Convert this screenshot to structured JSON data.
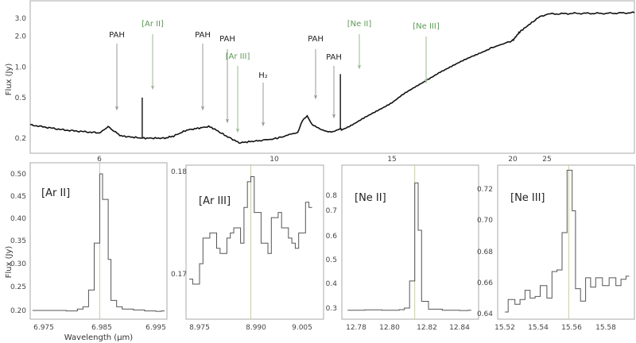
{
  "chart_data": [
    {
      "id": "overview",
      "type": "line",
      "title": "",
      "xlabel": "",
      "ylabel": "Flux (Jy)",
      "yscale": "log",
      "ytick_labels": [
        "3.0",
        "2.0",
        "1.0",
        "0.5",
        "0.2"
      ],
      "xtick_labels": [
        "6",
        "10",
        "15",
        "20",
        "25"
      ],
      "xlim": [
        5,
        28
      ],
      "ylim": [
        0.15,
        4.0
      ],
      "x": [
        5.0,
        5.5,
        6.0,
        6.1,
        6.2,
        6.3,
        6.5,
        6.98,
        7.5,
        7.7,
        8.0,
        8.5,
        8.6,
        8.9,
        9.2,
        9.7,
        10.5,
        11.0,
        11.2,
        11.4,
        11.6,
        12.0,
        12.5,
        12.81,
        12.85,
        14.0,
        15.0,
        15.55,
        17.0,
        19.0,
        21.0,
        23.0,
        24.0,
        25.0,
        26.0,
        27.0,
        28.0
      ],
      "values": [
        0.27,
        0.24,
        0.225,
        0.24,
        0.26,
        0.24,
        0.21,
        0.2,
        0.2,
        0.21,
        0.24,
        0.26,
        0.25,
        0.21,
        0.18,
        0.19,
        0.21,
        0.23,
        0.3,
        0.33,
        0.27,
        0.24,
        0.23,
        0.25,
        0.24,
        0.33,
        0.45,
        0.55,
        0.9,
        1.5,
        2.2,
        2.8,
        3.1,
        3.3,
        3.35,
        3.35,
        3.4
      ],
      "annotations": [
        {
          "text": "PAH",
          "x": 6.2,
          "color": "#222222"
        },
        {
          "text": "[Ar II]",
          "x": 6.98,
          "color": "#5a9a52"
        },
        {
          "text": "PAH",
          "x": 7.7,
          "color": "#222222"
        },
        {
          "text": "PAH",
          "x": 8.6,
          "color": "#222222"
        },
        {
          "text": "[Ar III]",
          "x": 8.99,
          "color": "#5a9a52"
        },
        {
          "text": "H₂",
          "x": 9.66,
          "color": "#222222"
        },
        {
          "text": "PAH",
          "x": 11.3,
          "color": "#222222"
        },
        {
          "text": "PAH",
          "x": 12.0,
          "color": "#222222"
        },
        {
          "text": "[Ne II]",
          "x": 12.81,
          "color": "#5a9a52"
        },
        {
          "text": "[Ne III]",
          "x": 15.55,
          "color": "#5a9a52"
        }
      ]
    },
    {
      "id": "ar2",
      "type": "line",
      "title": "[Ar II]",
      "xlabel": "Wavelength (μm)",
      "ylabel": "Flux (Jy)",
      "ytick_labels": [
        "0.50",
        "0.45",
        "0.40",
        "0.35",
        "0.30",
        "0.25",
        "0.20"
      ],
      "xtick_labels": [
        "6.975",
        "6.985",
        "6.995"
      ],
      "ylim": [
        0.19,
        0.51
      ],
      "x": [
        6.973,
        6.976,
        6.979,
        6.981,
        6.982,
        6.983,
        6.984,
        6.985,
        6.9855,
        6.9865,
        6.987,
        6.988,
        6.989,
        6.991,
        6.993,
        6.995,
        6.996
      ],
      "values": [
        0.2,
        0.2,
        0.199,
        0.203,
        0.208,
        0.245,
        0.348,
        0.5,
        0.444,
        0.312,
        0.222,
        0.208,
        0.203,
        0.201,
        0.199,
        0.198,
        0.199
      ]
    },
    {
      "id": "ar3",
      "type": "line",
      "title": "[Ar III]",
      "xlabel": "",
      "ylabel": "",
      "ytick_labels": [
        "0.18",
        "0.17"
      ],
      "xtick_labels": [
        "8.975",
        "8.990",
        "9.005"
      ],
      "ylim": [
        0.1665,
        0.1805
      ],
      "x": [
        8.972,
        8.973,
        8.975,
        8.976,
        8.978,
        8.98,
        8.981,
        8.983,
        8.984,
        8.985,
        8.987,
        8.988,
        8.989,
        8.99,
        8.991,
        8.993,
        8.995,
        8.996,
        8.998,
        8.999,
        9.001,
        9.002,
        9.003,
        9.004,
        9.006,
        9.007
      ],
      "values": [
        0.1695,
        0.169,
        0.171,
        0.1735,
        0.174,
        0.1725,
        0.172,
        0.1735,
        0.174,
        0.1745,
        0.173,
        0.1765,
        0.179,
        0.1795,
        0.176,
        0.173,
        0.172,
        0.1755,
        0.176,
        0.1745,
        0.1735,
        0.173,
        0.1725,
        0.174,
        0.177,
        0.1765
      ]
    },
    {
      "id": "ne2",
      "type": "line",
      "title": "[Ne II]",
      "xlabel": "",
      "ylabel": "",
      "ytick_labels": [
        "0.8",
        "0.7",
        "0.6",
        "0.5",
        "0.4",
        "0.3"
      ],
      "xtick_labels": [
        "12.78",
        "12.80",
        "12.82",
        "12.84"
      ],
      "ylim": [
        0.28,
        0.88
      ],
      "x": [
        12.775,
        12.785,
        12.795,
        12.805,
        12.808,
        12.811,
        12.814,
        12.816,
        12.818,
        12.822,
        12.83,
        12.84,
        12.845
      ],
      "values": [
        0.29,
        0.292,
        0.29,
        0.293,
        0.3,
        0.42,
        0.855,
        0.645,
        0.33,
        0.295,
        0.29,
        0.289,
        0.29
      ]
    },
    {
      "id": "ne3",
      "type": "line",
      "title": "[Ne III]",
      "xlabel": "",
      "ylabel": "",
      "ytick_labels": [
        "0.72",
        "0.70",
        "0.68",
        "0.66",
        "0.64"
      ],
      "xtick_labels": [
        "15.52",
        "15.54",
        "15.56",
        "15.58"
      ],
      "ylim": [
        0.638,
        0.735
      ],
      "x": [
        15.52,
        15.522,
        15.526,
        15.529,
        15.532,
        15.535,
        15.538,
        15.541,
        15.545,
        15.548,
        15.551,
        15.554,
        15.557,
        15.56,
        15.562,
        15.565,
        15.568,
        15.571,
        15.574,
        15.578,
        15.582,
        15.586,
        15.589,
        15.592
      ],
      "values": [
        0.641,
        0.649,
        0.646,
        0.649,
        0.655,
        0.65,
        0.651,
        0.658,
        0.65,
        0.667,
        0.668,
        0.692,
        0.732,
        0.706,
        0.656,
        0.648,
        0.663,
        0.657,
        0.663,
        0.658,
        0.663,
        0.658,
        0.662,
        0.664
      ]
    }
  ],
  "labels": {
    "top_ylabel": "Flux (Jy)",
    "bottom_ylabel": "Flux (Jy)",
    "bottom_xlabel": "Wavelength (μm)",
    "panel_titles": [
      "[Ar II]",
      "[Ar III]",
      "[Ne II]",
      "[Ne III]"
    ]
  },
  "colors": {
    "line": "#111111",
    "line_thin": "#555555",
    "ion_label": "#5a9a52",
    "pah_label": "#222222",
    "frame": "#aaaaaa",
    "center_line": "#c8cfa8"
  }
}
